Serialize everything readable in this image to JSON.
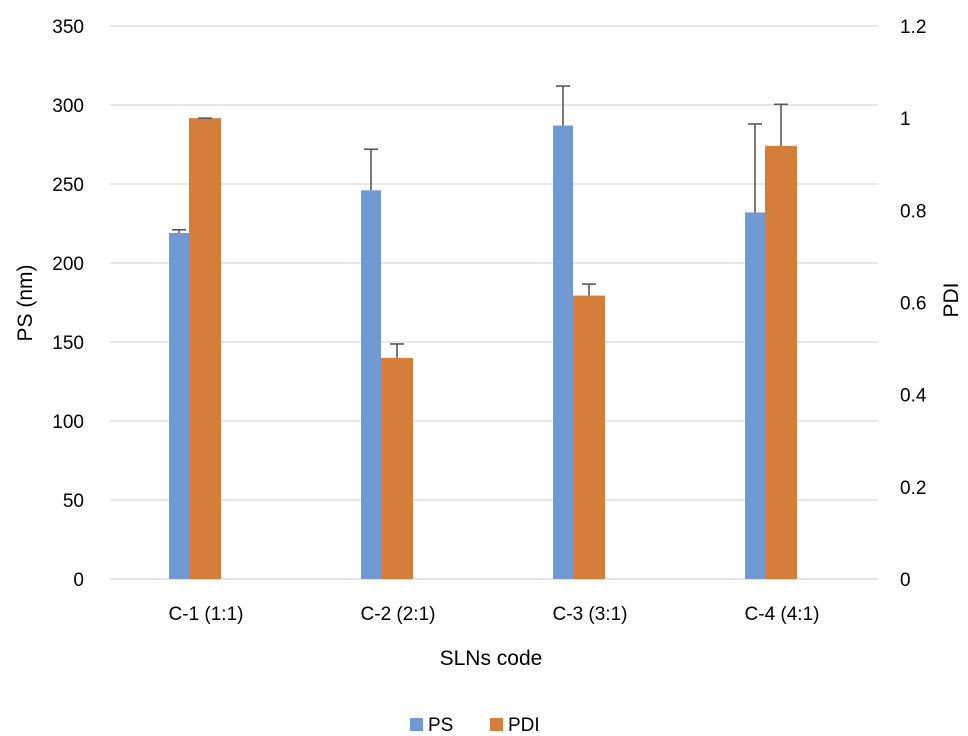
{
  "chart_data": {
    "type": "bar",
    "categories": [
      "C-1 (1:1)",
      "C-2 (2:1)",
      "C-3 (3:1)",
      "C-4 (4:1)"
    ],
    "series": [
      {
        "name": "PS",
        "axis": "left",
        "color": "#7099d3",
        "values": [
          219,
          246,
          287,
          232
        ],
        "errors": [
          2,
          26,
          25,
          56
        ]
      },
      {
        "name": "PDI",
        "axis": "right",
        "color": "#d57d3a",
        "values": [
          1.0,
          0.48,
          0.615,
          0.94
        ],
        "errors": [
          0.0,
          0.03,
          0.025,
          0.09
        ]
      }
    ],
    "title": "",
    "xlabel": "SLNs code",
    "ylabel": "PS (nm)",
    "y2label": "PDI",
    "ylim": [
      0,
      350
    ],
    "y2lim": [
      0,
      1.2
    ],
    "yticks": [
      "0",
      "50",
      "100",
      "150",
      "200",
      "250",
      "300",
      "350"
    ],
    "y2ticks": [
      "0",
      "0.2",
      "0.4",
      "0.6",
      "0.8",
      "1",
      "1.2"
    ],
    "grid": true,
    "legend": "bottom",
    "colors": {
      "gridline": "#d9d9d9",
      "errorbar": "#595959"
    }
  }
}
